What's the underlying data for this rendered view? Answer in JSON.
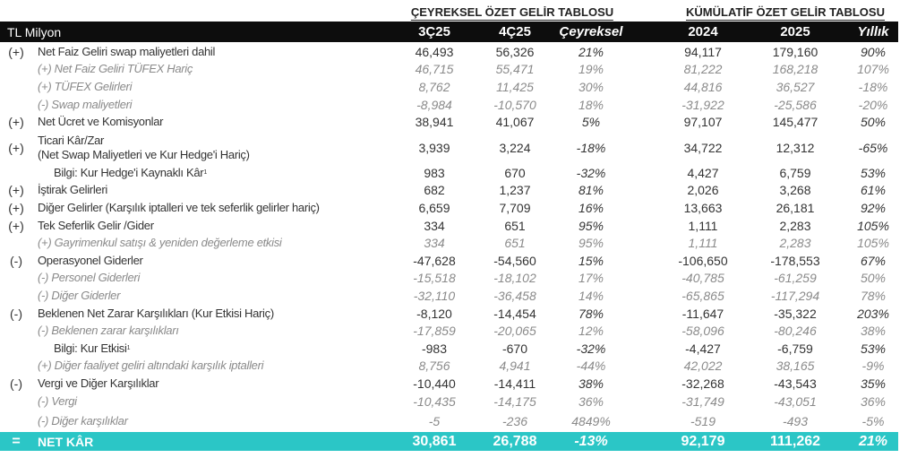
{
  "headers": {
    "group_quarterly": "ÇEYREKSEL ÖZET GELİR TABLOSU",
    "group_cumulative": "KÜMÜLATİF ÖZET GELİR TABLOSU",
    "unit": "TL Milyon",
    "columns": [
      "3Ç25",
      "4Ç25",
      "Çeyreksel",
      "2024",
      "2025",
      "Yıllık"
    ]
  },
  "colors": {
    "header_bg": "#0d0d0d",
    "net_row_bg": "#2bc6c6",
    "sub_text": "#8a8a8a"
  },
  "rows": [
    {
      "sign": "(+)",
      "label": "Net Faiz Geliri swap maliyetleri dahil",
      "type": "main",
      "values": [
        "46,493",
        "56,326",
        "21%",
        "94,117",
        "179,160",
        "90%"
      ]
    },
    {
      "sign": "",
      "label": "(+) Net Faiz Geliri TÜFEX Hariç",
      "type": "sub",
      "values": [
        "46,715",
        "55,471",
        "19%",
        "81,222",
        "168,218",
        "107%"
      ]
    },
    {
      "sign": "",
      "label": "(+) TÜFEX Gelirleri",
      "type": "sub",
      "values": [
        "8,762",
        "11,425",
        "30%",
        "44,816",
        "36,527",
        "-18%"
      ]
    },
    {
      "sign": "",
      "label": "(-) Swap maliyetleri",
      "type": "sub",
      "values": [
        "-8,984",
        "-10,570",
        "18%",
        "-31,922",
        "-25,586",
        "-20%"
      ]
    },
    {
      "sign": "(+)",
      "label": "Net Ücret ve Komisyonlar",
      "type": "main",
      "values": [
        "38,941",
        "41,067",
        "5%",
        "97,107",
        "145,477",
        "50%"
      ]
    },
    {
      "sign": "(+)",
      "label": "Ticari Kâr/Zar",
      "label2": "(Net Swap Maliyetleri ve Kur Hedge'i Hariç)",
      "type": "main",
      "values": [
        "3,939",
        "3,224",
        "-18%",
        "34,722",
        "12,312",
        "-65%"
      ]
    },
    {
      "sign": "",
      "label": "Bilgi: Kur Hedge'i Kaynaklı Kâr",
      "footnote": "1",
      "type": "info",
      "values": [
        "983",
        "670",
        "-32%",
        "4,427",
        "6,759",
        "53%"
      ]
    },
    {
      "sign": "(+)",
      "label": "İştirak Gelirleri",
      "type": "main",
      "values": [
        "682",
        "1,237",
        "81%",
        "2,026",
        "3,268",
        "61%"
      ]
    },
    {
      "sign": "(+)",
      "label": "Diğer Gelirler (Karşılık iptalleri ve tek seferlik gelirler hariç)",
      "type": "main",
      "values": [
        "6,659",
        "7,709",
        "16%",
        "13,663",
        "26,181",
        "92%"
      ]
    },
    {
      "sign": "(+)",
      "label": "Tek Seferlik Gelir /Gider",
      "type": "main",
      "values": [
        "334",
        "651",
        "95%",
        "1,111",
        "2,283",
        "105%"
      ]
    },
    {
      "sign": "",
      "label": "(+) Gayrimenkul satışı & yeniden değerleme etkisi",
      "type": "sub",
      "values": [
        "334",
        "651",
        "95%",
        "1,111",
        "2,283",
        "105%"
      ]
    },
    {
      "sign": "(-)",
      "label": "Operasyonel Giderler",
      "type": "main",
      "values": [
        "-47,628",
        "-54,560",
        "15%",
        "-106,650",
        "-178,553",
        "67%"
      ]
    },
    {
      "sign": "",
      "label": "(-) Personel Giderleri",
      "type": "sub",
      "values": [
        "-15,518",
        "-18,102",
        "17%",
        "-40,785",
        "-61,259",
        "50%"
      ]
    },
    {
      "sign": "",
      "label": "(-) Diğer Giderler",
      "type": "sub",
      "values": [
        "-32,110",
        "-36,458",
        "14%",
        "-65,865",
        "-117,294",
        "78%"
      ]
    },
    {
      "sign": "(-)",
      "label": "Beklenen Net Zarar Karşılıkları (Kur Etkisi Hariç)",
      "type": "main",
      "values": [
        "-8,120",
        "-14,454",
        "78%",
        "-11,647",
        "-35,322",
        "203%"
      ]
    },
    {
      "sign": "",
      "label": "(-) Beklenen zarar karşılıkları",
      "type": "sub",
      "values": [
        "-17,859",
        "-20,065",
        "12%",
        "-58,096",
        "-80,246",
        "38%"
      ]
    },
    {
      "sign": "",
      "label": "Bilgi: Kur Etkisi",
      "footnote": "1",
      "type": "info",
      "values": [
        "-983",
        "-670",
        "-32%",
        "-4,427",
        "-6,759",
        "53%"
      ]
    },
    {
      "sign": "",
      "label": "(+) Diğer faaliyet geliri altındaki karşılık iptalleri",
      "type": "sub",
      "values": [
        "8,756",
        "4,941",
        "-44%",
        "42,022",
        "38,165",
        "-9%"
      ]
    },
    {
      "sign": "(-)",
      "label": "Vergi ve Diğer Karşılıklar",
      "type": "main",
      "values": [
        "-10,440",
        "-14,411",
        "38%",
        "-32,268",
        "-43,543",
        "35%"
      ]
    },
    {
      "sign": "",
      "label": "(-) Vergi",
      "type": "sub",
      "values": [
        "-10,435",
        "-14,175",
        "36%",
        "-31,749",
        "-43,051",
        "36%"
      ]
    },
    {
      "sign": "",
      "label": "(-) Diğer karşılıklar",
      "type": "sub",
      "values": [
        "-5",
        "-236",
        "4849%",
        "-519",
        "-493",
        "-5%"
      ]
    },
    {
      "sign": "=",
      "label": "NET KÂR",
      "type": "net",
      "values": [
        "30,861",
        "26,788",
        "-13%",
        "92,179",
        "111,262",
        "21%"
      ]
    }
  ]
}
